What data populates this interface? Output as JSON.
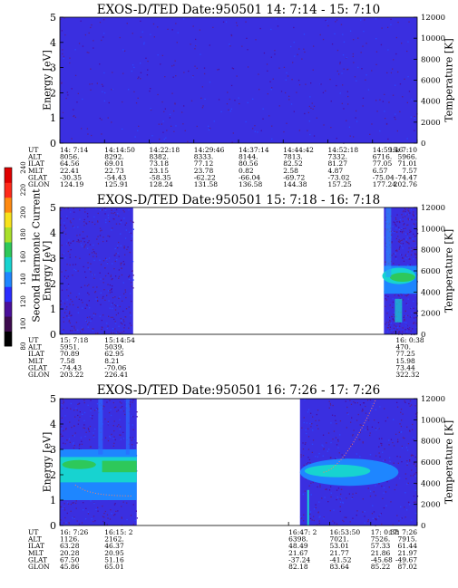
{
  "colorbar": {
    "label": "Second Harmonic Current",
    "ticks": [
      "80",
      "100",
      "120",
      "140",
      "160",
      "180",
      "200",
      "220",
      "240"
    ],
    "colors": [
      "#000000",
      "#3d0b4e",
      "#4a0f9a",
      "#2a2cff",
      "#1e86ff",
      "#17d3d0",
      "#2ec85a",
      "#a9e02a",
      "#f7e21c",
      "#ff8a10",
      "#ff2a1a",
      "#e00000"
    ]
  },
  "orbit_labels": [
    "UT",
    "ALT",
    "ILAT",
    "MLT",
    "GLAT",
    "GLON"
  ],
  "chart_data": [
    {
      "type": "heatmap",
      "title": "EXOS-D/TED    Date:950501   14: 7:14 - 15: 7:10",
      "ylabel": "Energy [eV]",
      "ylabel_right": "Temperature [K]",
      "ylim": [
        0,
        5
      ],
      "ylim_right": [
        0,
        12000
      ],
      "yticks": [
        "0",
        "1",
        "2",
        "3",
        "4",
        "5"
      ],
      "yticks_right": [
        "0",
        "2000",
        "4000",
        "6000",
        "8000",
        "10000",
        "12000"
      ],
      "data_segments": [
        [
          0,
          1
        ]
      ],
      "orbit_columns": [
        {
          "pos": 0.0,
          "values": [
            "14: 7:14",
            "8056.",
            "64.56",
            "22.41",
            "-30.35",
            "124.19"
          ]
        },
        {
          "pos": 0.125,
          "values": [
            "14:14:50",
            "8292.",
            "69.01",
            "22.73",
            "-54.43",
            "125.91"
          ]
        },
        {
          "pos": 0.25,
          "values": [
            "14:22:18",
            "8382.",
            "73.18",
            "23.15",
            "-58.35",
            "128.24"
          ]
        },
        {
          "pos": 0.375,
          "values": [
            "14:29:46",
            "8333.",
            "77.12",
            "23.78",
            "-62.22",
            "131.58"
          ]
        },
        {
          "pos": 0.5,
          "values": [
            "14:37:14",
            "8144.",
            "80.56",
            "0.82",
            "-66.04",
            "136.58"
          ]
        },
        {
          "pos": 0.625,
          "values": [
            "14:44:42",
            "7813.",
            "82.52",
            "2.58",
            "-69.72",
            "144.38"
          ]
        },
        {
          "pos": 0.75,
          "values": [
            "14:52:18",
            "7332.",
            "81.27",
            "4.87",
            "-73.02",
            "157.25"
          ]
        },
        {
          "pos": 0.875,
          "values": [
            "14:59:46",
            "6716.",
            "77.05",
            "6.57",
            "-75.04",
            "177.24"
          ]
        },
        {
          "pos": 1.0,
          "values": [
            "15: 7:10",
            "5966.",
            "71.01",
            "7.57",
            "-74.47",
            "202.76"
          ]
        }
      ]
    },
    {
      "type": "heatmap",
      "title": "EXOS-D/TED    Date:950501   15: 7:18 - 16: 7:18",
      "ylabel": "Energy [eV]",
      "ylabel_right": "Temperature [K]",
      "ylim": [
        0,
        5
      ],
      "ylim_right": [
        0,
        12000
      ],
      "yticks": [
        "0",
        "1",
        "2",
        "3",
        "4",
        "5"
      ],
      "yticks_right": [
        "0",
        "2000",
        "4000",
        "6000",
        "8000",
        "10000",
        "12000"
      ],
      "data_segments": [
        [
          0,
          0.205
        ],
        [
          0.907,
          1
        ]
      ],
      "orbit_columns": [
        {
          "pos": 0.0,
          "values": [
            "15: 7:18",
            "5951.",
            "70.89",
            "7.58",
            "-74.43",
            "203.22"
          ]
        },
        {
          "pos": 0.125,
          "values": [
            "15:14:54",
            "5039.",
            "62.95",
            "8.21",
            "-70.06",
            "226.41"
          ]
        },
        {
          "pos": 0.94,
          "values": [
            "16: 0:38",
            "470.",
            "77.25",
            "15.98",
            "73.44",
            "322.32"
          ]
        }
      ]
    },
    {
      "type": "heatmap",
      "title": "EXOS-D/TED    Date:950501   16: 7:26 - 17: 7:26",
      "ylabel": "Energy [eV]",
      "ylabel_right": "Temperature [K]",
      "ylim": [
        0,
        5
      ],
      "ylim_right": [
        0,
        12000
      ],
      "yticks": [
        "0",
        "1",
        "2",
        "3",
        "4",
        "5"
      ],
      "yticks_right": [
        "0",
        "2000",
        "4000",
        "6000",
        "8000",
        "10000",
        "12000"
      ],
      "data_segments": [
        [
          0,
          0.215
        ],
        [
          0.672,
          1
        ]
      ],
      "orbit_columns": [
        {
          "pos": 0.0,
          "values": [
            "16: 7:26",
            "1126.",
            "63.28",
            "20.28",
            "67.50",
            "45.86"
          ]
        },
        {
          "pos": 0.125,
          "values": [
            "16:15: 2",
            "2162.",
            "46.37",
            "20.95",
            "51.16",
            "65.01"
          ]
        },
        {
          "pos": 0.64,
          "values": [
            "16:47: 2",
            "6398.",
            "48.49",
            "21.67",
            "-37.24",
            "82.18"
          ]
        },
        {
          "pos": 0.755,
          "values": [
            "16:53:50",
            "7021.",
            "53.01",
            "21.77",
            "-41.52",
            "83.64"
          ]
        },
        {
          "pos": 0.87,
          "values": [
            "17: 0:38",
            "7526.",
            "57.33",
            "21.86",
            "-45.68",
            "85.22"
          ]
        },
        {
          "pos": 1.0,
          "values": [
            "17: 7:26",
            "7915.",
            "61.44",
            "21.97",
            "-49.67",
            "87.02"
          ]
        }
      ]
    }
  ]
}
